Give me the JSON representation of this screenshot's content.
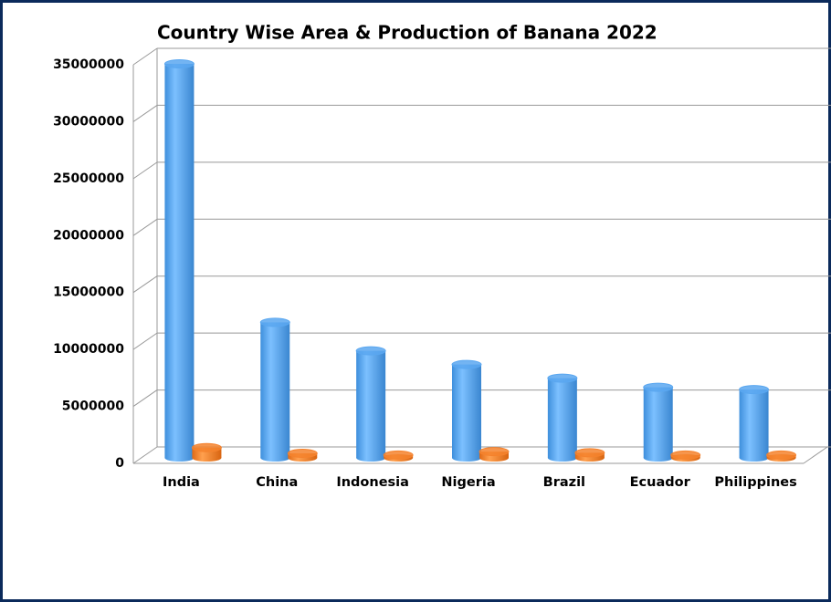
{
  "chart_data": {
    "type": "bar",
    "title": "Country Wise Area & Production of Banana 2022",
    "categories": [
      "India",
      "China",
      "Indonesia",
      "Nigeria",
      "Brazil",
      "Ecuador",
      "Philippines"
    ],
    "series": [
      {
        "color": "#5aa7f0",
        "values": [
          34600000,
          11900000,
          9400000,
          8200000,
          7000000,
          6200000,
          6000000
        ]
      },
      {
        "color": "#f5822d",
        "values": [
          900000,
          400000,
          250000,
          550000,
          450000,
          250000,
          250000
        ]
      }
    ],
    "ylim": [
      0,
      35000000
    ],
    "yticks": [
      0,
      5000000,
      10000000,
      15000000,
      20000000,
      25000000,
      30000000,
      35000000
    ],
    "grid": true
  }
}
